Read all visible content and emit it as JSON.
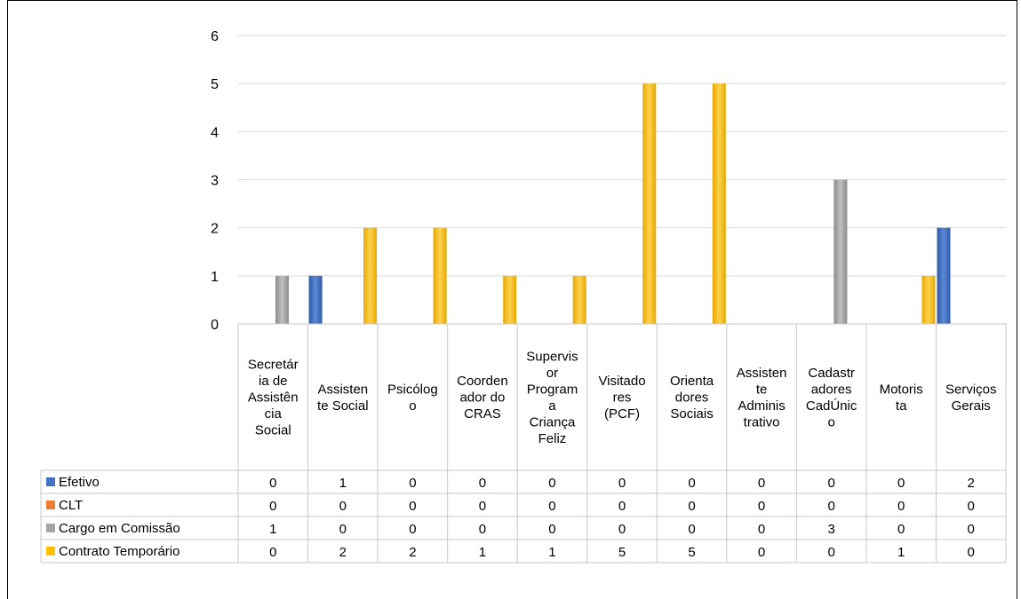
{
  "chart_data": {
    "type": "bar",
    "categories": [
      "Secretária de Assistência Social",
      "Assistente Social",
      "Psicólogo",
      "Coordenador do CRAS",
      "Supervisor Programa Criança Feliz",
      "Visitadores (PCF)",
      "Orientadores Sociais",
      "Assistente Administrativo",
      "Cadastradores CadÚnico",
      "Motorista",
      "Serviços Gerais"
    ],
    "category_lines": [
      [
        "Secretár",
        "ia de",
        "Assistên",
        "cia",
        "Social"
      ],
      [
        "Assisten",
        "te Social"
      ],
      [
        "Psicólog",
        "o"
      ],
      [
        "Coorden",
        "ador do",
        "CRAS"
      ],
      [
        "Supervis",
        "or",
        "Program",
        "a",
        "Criança",
        "Feliz"
      ],
      [
        "Visitado",
        "res",
        "(PCF)"
      ],
      [
        "Orienta",
        "dores",
        "Sociais"
      ],
      [
        "Assisten",
        "te",
        "Adminis",
        "trativo"
      ],
      [
        "Cadastr",
        "adores",
        "CadÚnic",
        "o"
      ],
      [
        "Motoris",
        "ta"
      ],
      [
        "Serviços",
        "Gerais"
      ]
    ],
    "series": [
      {
        "name": "Efetivo",
        "color": "#4472C4",
        "values": [
          0,
          1,
          0,
          0,
          0,
          0,
          0,
          0,
          0,
          0,
          2
        ]
      },
      {
        "name": "CLT",
        "color": "#ED7D31",
        "values": [
          0,
          0,
          0,
          0,
          0,
          0,
          0,
          0,
          0,
          0,
          0
        ]
      },
      {
        "name": "Cargo em Comissão",
        "color": "#A5A5A5",
        "values": [
          1,
          0,
          0,
          0,
          0,
          0,
          0,
          0,
          3,
          0,
          0
        ]
      },
      {
        "name": "Contrato Temporário",
        "color": "#FFC000",
        "values": [
          0,
          2,
          2,
          1,
          1,
          5,
          5,
          0,
          0,
          1,
          0
        ]
      }
    ],
    "ylim": [
      0,
      6
    ],
    "yticks": [
      0,
      1,
      2,
      3,
      4,
      5,
      6
    ],
    "grid": true,
    "data_table": true,
    "title": "",
    "xlabel": "",
    "ylabel": ""
  }
}
